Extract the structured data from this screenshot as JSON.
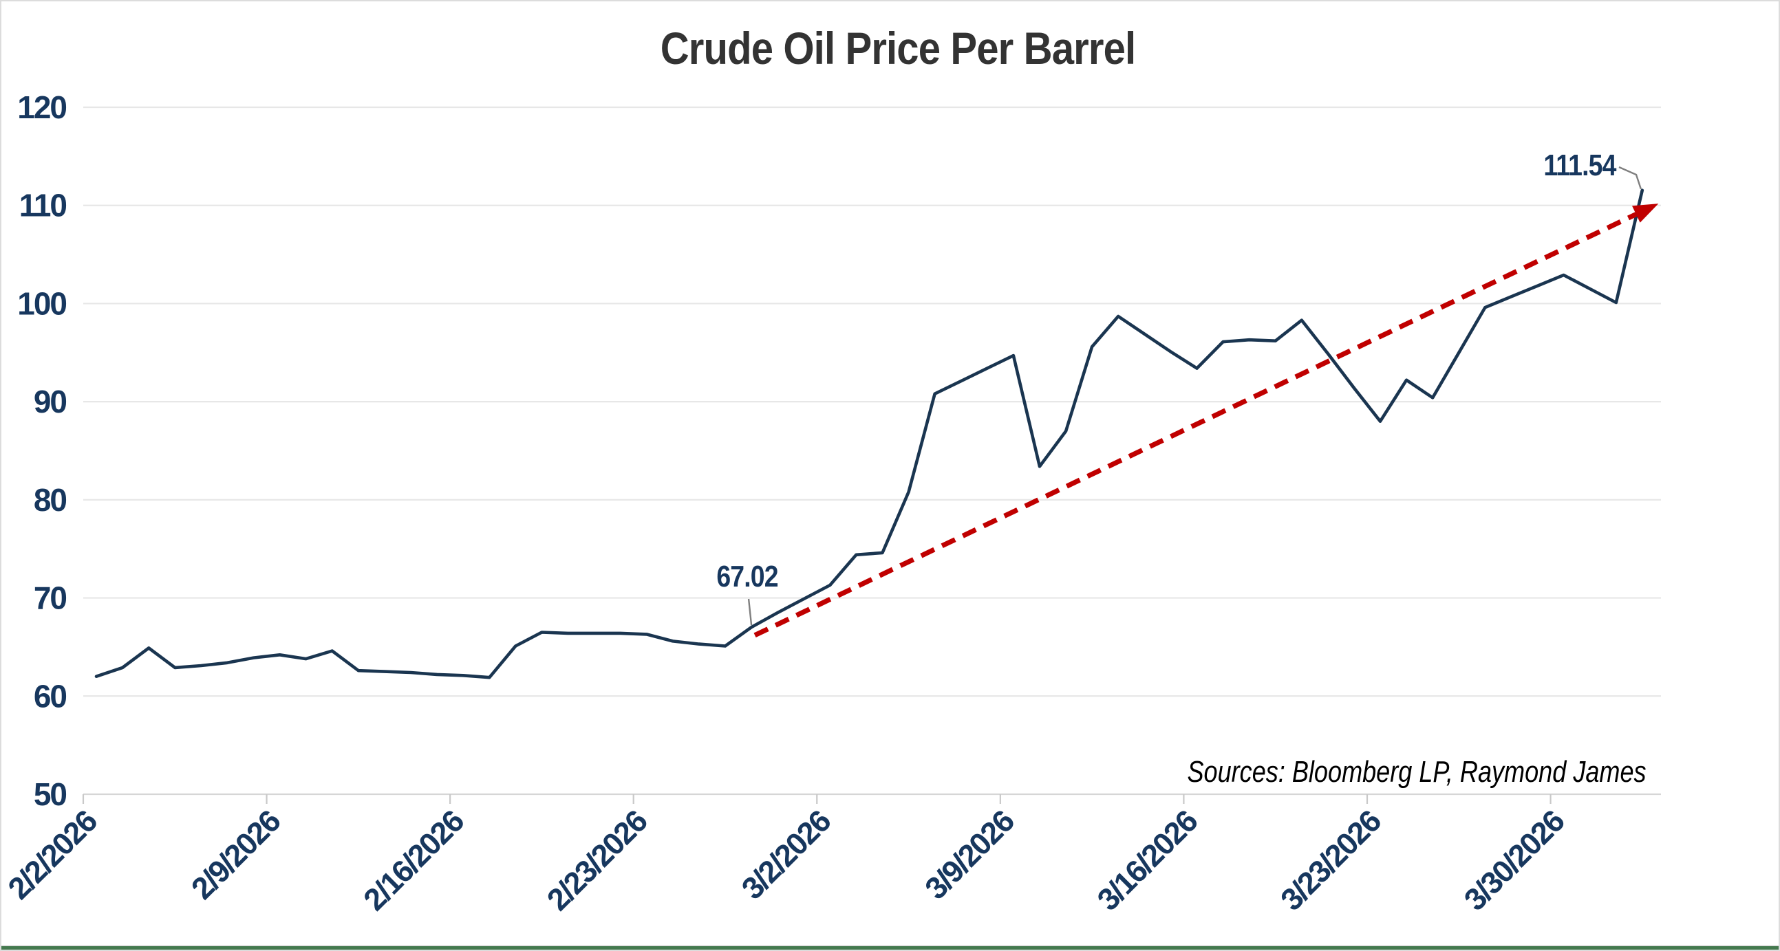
{
  "window": {
    "background": "#FFFFFF",
    "border_color": "#DCDCDC",
    "bottom_edge_color": "#44794E"
  },
  "chart_data": {
    "type": "line",
    "title": "Crude Oil Price Per Barrel",
    "title_color": "#333333",
    "xlabel": "",
    "ylabel": "",
    "ylim": [
      50,
      120
    ],
    "ytick_step": 10,
    "grid": "horizontal",
    "gridline_color": "#E7E7E7",
    "legend": "none",
    "axis_label_color": "#17375E",
    "x": [
      "2/2/2026",
      "2/3/2026",
      "2/4/2026",
      "2/5/2026",
      "2/6/2026",
      "2/7/2026",
      "2/8/2026",
      "2/9/2026",
      "2/10/2026",
      "2/11/2026",
      "2/12/2026",
      "2/13/2026",
      "2/14/2026",
      "2/15/2026",
      "2/16/2026",
      "2/17/2026",
      "2/18/2026",
      "2/19/2026",
      "2/20/2026",
      "2/21/2026",
      "2/22/2026",
      "2/23/2026",
      "2/24/2026",
      "2/25/2026",
      "2/26/2026",
      "2/27/2026",
      "2/28/2026",
      "3/1/2026",
      "3/2/2026",
      "3/3/2026",
      "3/4/2026",
      "3/5/2026",
      "3/6/2026",
      "3/7/2026",
      "3/8/2026",
      "3/9/2026",
      "3/10/2026",
      "3/11/2026",
      "3/12/2026",
      "3/13/2026",
      "3/14/2026",
      "3/15/2026",
      "3/16/2026",
      "3/17/2026",
      "3/18/2026",
      "3/19/2026",
      "3/20/2026",
      "3/21/2026",
      "3/22/2026",
      "3/23/2026",
      "3/24/2026",
      "3/25/2026",
      "3/26/2026",
      "3/27/2026",
      "3/28/2026",
      "3/29/2026",
      "3/30/2026",
      "3/31/2026",
      "4/1/2026",
      "4/2/2026"
    ],
    "series": [
      {
        "name": "Crude Oil Price Per Barrel",
        "color": "#1A3550",
        "values": [
          62.0,
          62.9,
          64.9,
          62.9,
          63.1,
          63.4,
          63.9,
          64.2,
          63.8,
          64.6,
          62.6,
          62.5,
          62.4,
          62.2,
          62.1,
          61.9,
          65.1,
          66.5,
          66.4,
          66.4,
          66.4,
          66.3,
          65.6,
          65.3,
          65.1,
          67.02,
          68.5,
          69.9,
          71.3,
          74.4,
          74.6,
          80.8,
          90.8,
          92.1,
          93.4,
          94.7,
          83.4,
          87.0,
          95.6,
          98.7,
          96.9,
          95.1,
          93.4,
          96.1,
          96.3,
          96.2,
          98.3,
          94.9,
          91.4,
          88.0,
          92.2,
          90.4,
          95.0,
          99.6,
          100.7,
          101.8,
          102.9,
          101.5,
          100.1,
          111.54
        ]
      }
    ],
    "xtick_labels": [
      "2/2/2026",
      "2/9/2026",
      "2/16/2026",
      "2/23/2026",
      "3/2/2026",
      "3/9/2026",
      "3/16/2026",
      "3/23/2026",
      "3/30/2026"
    ],
    "xtick_every": 7,
    "annotations": [
      {
        "label": "67.02",
        "date": "2/27/2026",
        "value": 67.02
      },
      {
        "label": "111.54",
        "date": "4/2/2026",
        "value": 111.54
      }
    ],
    "leader_line_color": "#7F7F7F",
    "trendline": {
      "type": "dashed-arrow",
      "color": "#C00000",
      "from": {
        "date": "2/27/2026",
        "value": 66.2
      },
      "to": {
        "date": "4/2/2026",
        "value": 109.4
      }
    },
    "sources_note": "Sources: Bloomberg LP, Raymond James"
  }
}
